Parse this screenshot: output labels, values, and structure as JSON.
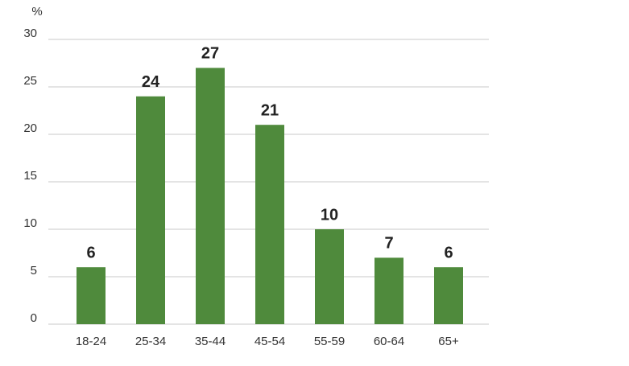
{
  "chart_data": {
    "type": "bar",
    "y_label": "%",
    "categories": [
      "18-24",
      "25-34",
      "35-44",
      "45-54",
      "55-59",
      "60-64",
      "65+"
    ],
    "values": [
      6,
      24,
      27,
      21,
      10,
      7,
      6
    ],
    "color": "#4f8a3c",
    "ylim": [
      0,
      30
    ],
    "yticks": [
      0,
      5,
      10,
      15,
      20,
      25,
      30
    ],
    "grid": true
  }
}
